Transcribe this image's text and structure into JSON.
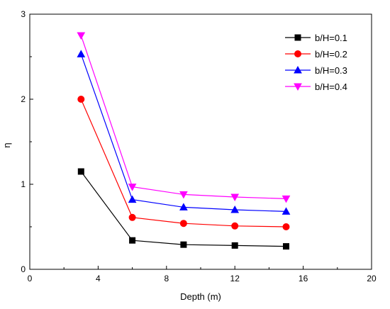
{
  "chart_data": {
    "type": "line",
    "title": "",
    "xlabel": "Depth (m)",
    "ylabel": "η",
    "xlim": [
      0,
      20
    ],
    "ylim": [
      0,
      3
    ],
    "xticks": [
      0,
      4,
      8,
      12,
      16,
      20
    ],
    "xtick_labels": [
      "0",
      "4",
      "8",
      "12",
      "16",
      "20"
    ],
    "yticks": [
      0,
      1,
      2,
      3
    ],
    "ytick_labels": [
      "0",
      "1",
      "2",
      "3"
    ],
    "grid": false,
    "legend_position": "top-right",
    "x": [
      3,
      6,
      9,
      12,
      15
    ],
    "series": [
      {
        "name": "b/H=0.1",
        "values": [
          1.15,
          0.34,
          0.29,
          0.28,
          0.27
        ],
        "color": "#000000",
        "marker": "square"
      },
      {
        "name": "b/H=0.2",
        "values": [
          2.0,
          0.61,
          0.54,
          0.51,
          0.5
        ],
        "color": "#ff0000",
        "marker": "circle"
      },
      {
        "name": "b/H=0.3",
        "values": [
          2.53,
          0.82,
          0.73,
          0.7,
          0.68
        ],
        "color": "#0000ff",
        "marker": "triangle-up"
      },
      {
        "name": "b/H=0.4",
        "values": [
          2.75,
          0.97,
          0.88,
          0.85,
          0.83
        ],
        "color": "#ff00ff",
        "marker": "triangle-down"
      }
    ]
  }
}
